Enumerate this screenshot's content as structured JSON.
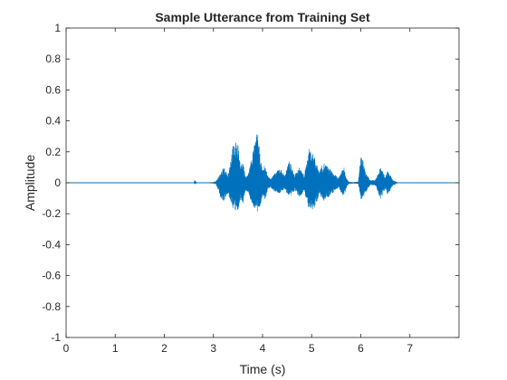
{
  "chart_data": {
    "type": "line",
    "title": "Sample Utterance from Training Set",
    "xlabel": "Time (s)",
    "ylabel": "Amplitude",
    "xlim": [
      0,
      8
    ],
    "ylim": [
      -1,
      1
    ],
    "xticks": [
      0,
      1,
      2,
      3,
      4,
      5,
      6,
      7
    ],
    "xtick_labels": [
      "0",
      "1",
      "2",
      "3",
      "4",
      "5",
      "6",
      "7"
    ],
    "yticks": [
      1,
      0.8,
      0.6,
      0.4,
      0.2,
      0,
      -0.2,
      -0.4,
      -0.6,
      -0.8,
      -1
    ],
    "ytick_labels": [
      "1",
      "0.8",
      "0.6",
      "0.4",
      "0.2",
      "0",
      "-0.2",
      "-0.4",
      "-0.6",
      "-0.8",
      "-1"
    ],
    "grid": false,
    "line_color": "#0072BD",
    "series": [
      {
        "envelope": {
          "t": [
            0,
            2.55,
            2.6,
            2.62,
            2.66,
            2.7,
            2.9,
            3.0,
            3.05,
            3.1,
            3.15,
            3.2,
            3.3,
            3.4,
            3.5,
            3.55,
            3.6,
            3.65,
            3.7,
            3.8,
            3.9,
            3.95,
            4.0,
            4.05,
            4.1,
            4.15,
            4.25,
            4.35,
            4.45,
            4.55,
            4.65,
            4.75,
            4.85,
            4.95,
            5.05,
            5.15,
            5.25,
            5.35,
            5.45,
            5.55,
            5.65,
            5.7,
            5.75,
            5.85,
            5.95,
            6.0,
            6.05,
            6.1,
            6.15,
            6.2,
            6.3,
            6.4,
            6.45,
            6.5,
            6.55,
            6.6,
            6.65,
            6.7,
            6.75,
            6.85,
            7.0,
            8.0
          ],
          "max": [
            0.003,
            0.003,
            0.003,
            0.02,
            0.003,
            0.003,
            0.003,
            0.005,
            0.01,
            0.04,
            0.06,
            0.1,
            0.06,
            0.25,
            0.27,
            0.1,
            0.15,
            0.04,
            0.05,
            0.2,
            0.34,
            0.17,
            0.08,
            0.12,
            0.05,
            0.03,
            0.06,
            0.1,
            0.05,
            0.15,
            0.05,
            0.1,
            0.05,
            0.23,
            0.18,
            0.08,
            0.13,
            0.1,
            0.06,
            0.03,
            0.11,
            0.04,
            0.008,
            0.005,
            0.008,
            0.18,
            0.14,
            0.06,
            0.04,
            0.015,
            0.02,
            0.1,
            0.07,
            0.04,
            0.09,
            0.05,
            0.02,
            0.01,
            0.003,
            0.003,
            0.003,
            0.003
          ],
          "min": [
            -0.003,
            -0.003,
            -0.003,
            -0.01,
            -0.003,
            -0.003,
            -0.003,
            -0.005,
            -0.01,
            -0.05,
            -0.1,
            -0.12,
            -0.08,
            -0.17,
            -0.2,
            -0.1,
            -0.15,
            -0.05,
            -0.06,
            -0.15,
            -0.2,
            -0.16,
            -0.08,
            -0.12,
            -0.05,
            -0.03,
            -0.06,
            -0.07,
            -0.04,
            -0.1,
            -0.05,
            -0.1,
            -0.05,
            -0.19,
            -0.18,
            -0.08,
            -0.12,
            -0.09,
            -0.06,
            -0.03,
            -0.1,
            -0.04,
            -0.008,
            -0.005,
            -0.008,
            -0.11,
            -0.1,
            -0.06,
            -0.04,
            -0.015,
            -0.02,
            -0.11,
            -0.07,
            -0.04,
            -0.08,
            -0.05,
            -0.02,
            -0.01,
            -0.003,
            -0.003,
            -0.003,
            -0.003
          ]
        }
      }
    ]
  }
}
